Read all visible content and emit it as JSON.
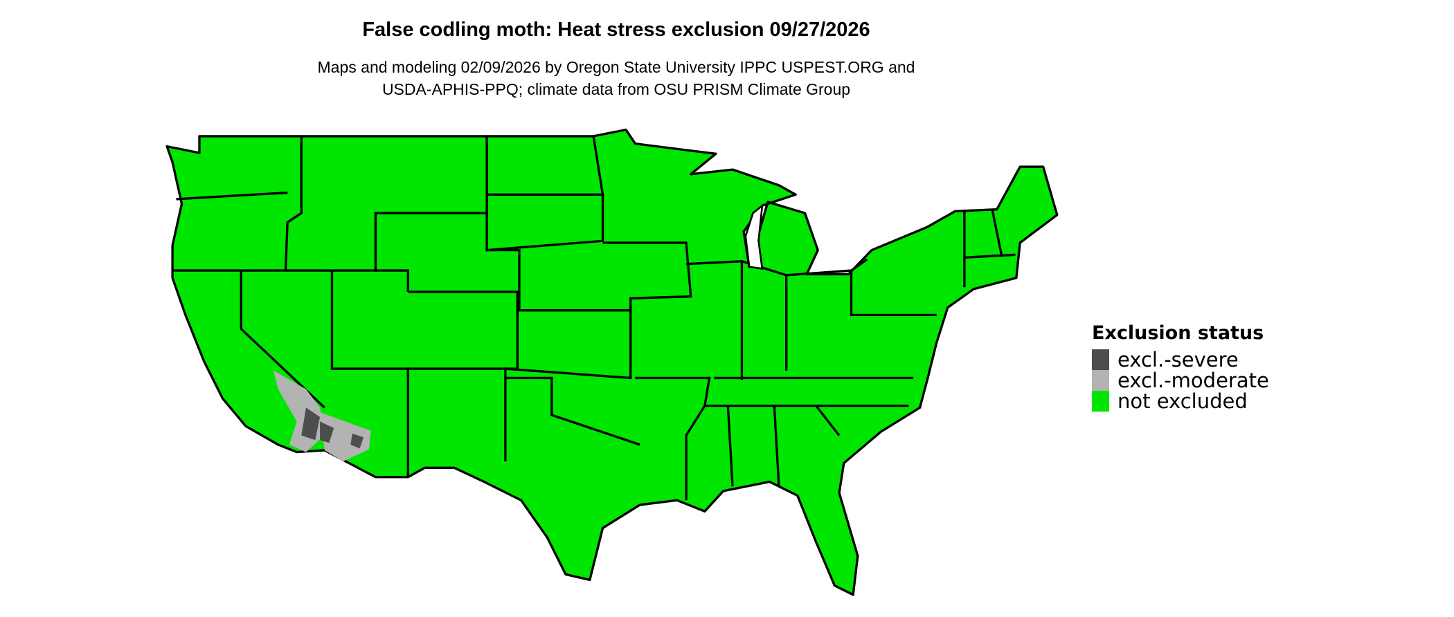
{
  "title": "False codling moth: Heat stress exclusion 09/27/2026",
  "subtitle": [
    "Maps and modeling 02/09/2026 by Oregon State University IPPC USPEST.ORG and",
    "USDA-APHIS-PPQ; climate data from OSU PRISM Climate Group"
  ],
  "legend": {
    "title": "Exclusion status",
    "items": [
      {
        "label": "excl.-severe",
        "color": "#4d4d4d"
      },
      {
        "label": "excl.-moderate",
        "color": "#b3b3b3"
      },
      {
        "label": "not excluded",
        "color": "#00e600"
      }
    ]
  },
  "map": {
    "region": "Contiguous United States",
    "fill": "#00e600",
    "border": "#000000"
  }
}
